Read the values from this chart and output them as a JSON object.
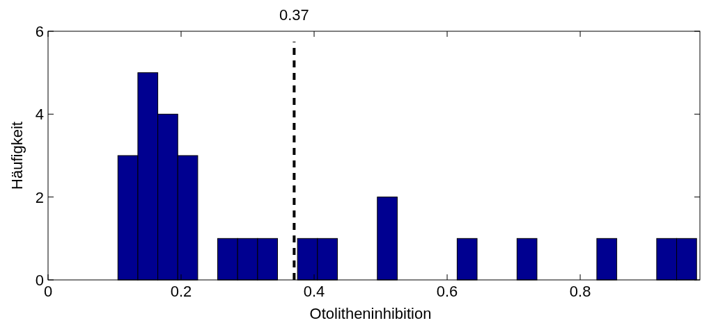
{
  "chart_data": {
    "type": "histogram",
    "xlabel": "Otolitheninhibition",
    "ylabel": "Häufigkeit",
    "bins": [
      0.105,
      0.135,
      0.165,
      0.195,
      0.225,
      0.255,
      0.285,
      0.315,
      0.345,
      0.375,
      0.405,
      0.435,
      0.465,
      0.495,
      0.525,
      0.555,
      0.585,
      0.615,
      0.645,
      0.675,
      0.705,
      0.735,
      0.765,
      0.795,
      0.825,
      0.855,
      0.885,
      0.915,
      0.945,
      0.975
    ],
    "values": [
      3,
      5,
      4,
      3,
      0,
      1,
      1,
      1,
      0,
      1,
      1,
      0,
      0,
      2,
      0,
      0,
      0,
      1,
      0,
      0,
      1,
      0,
      0,
      0,
      1,
      0,
      0,
      1,
      1
    ],
    "color": "#000090",
    "xlim": [
      0,
      0.98
    ],
    "xticks": [
      0,
      0.2,
      0.4,
      0.6,
      0.8
    ],
    "ylim": [
      0,
      6
    ],
    "yticks": [
      0,
      2,
      4,
      6
    ],
    "ref_lines": [
      {
        "axis": "x",
        "value": 0.37,
        "label": "0.37",
        "color": "#000000",
        "line_style": "dashed"
      }
    ]
  }
}
